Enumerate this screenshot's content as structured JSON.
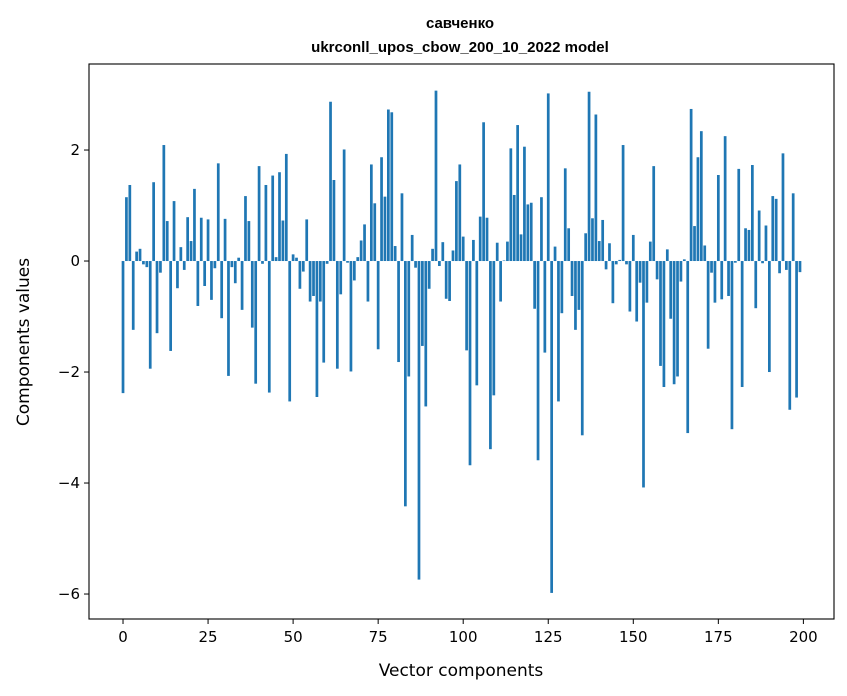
{
  "chart_data": {
    "type": "bar",
    "title": "савченко",
    "subtitle": "ukrconll_upos_cbow_200_10_2022 model",
    "xlabel": "Vector components",
    "ylabel": "Components values",
    "xlim": [
      -10,
      209
    ],
    "ylim": [
      -6.45,
      3.55
    ],
    "xticks": [
      0,
      25,
      50,
      75,
      100,
      125,
      150,
      175,
      200
    ],
    "yticks": [
      2,
      0,
      -2,
      -4,
      -6
    ],
    "ytick_labels": [
      "2",
      "0",
      "−2",
      "−4",
      "−6"
    ],
    "grid": false,
    "bar_color": "#1f77b4",
    "values": [
      -2.38,
      1.15,
      1.37,
      -1.24,
      0.17,
      0.22,
      -0.06,
      -0.11,
      -1.94,
      1.42,
      -1.3,
      -0.21,
      2.09,
      0.72,
      -1.62,
      1.08,
      -0.49,
      0.25,
      -0.16,
      0.79,
      0.36,
      1.3,
      -0.81,
      0.78,
      -0.45,
      0.75,
      -0.7,
      -0.13,
      1.76,
      -1.03,
      0.76,
      -2.07,
      -0.11,
      -0.4,
      0.06,
      -0.88,
      1.17,
      0.72,
      -1.2,
      -2.21,
      1.71,
      -0.05,
      1.37,
      -2.37,
      1.54,
      0.07,
      1.6,
      0.73,
      1.93,
      -2.53,
      0.12,
      0.06,
      -0.5,
      -0.19,
      0.75,
      -0.73,
      -0.63,
      -2.45,
      -0.73,
      -1.83,
      -0.05,
      2.87,
      1.46,
      -1.94,
      -0.6,
      2.01,
      -0.03,
      -1.99,
      -0.35,
      0.07,
      0.37,
      0.66,
      -0.73,
      1.74,
      1.04,
      -1.59,
      1.87,
      1.16,
      2.73,
      2.68,
      0.27,
      -1.82,
      1.22,
      -4.42,
      -2.08,
      0.47,
      -0.12,
      -5.74,
      -1.53,
      -2.62,
      -0.5,
      0.22,
      3.07,
      -0.09,
      0.34,
      -0.68,
      -0.72,
      0.19,
      1.44,
      1.74,
      0.44,
      -1.61,
      -3.68,
      0.38,
      -2.24,
      0.8,
      2.5,
      0.78,
      -3.39,
      -2.42,
      0.33,
      -0.73,
      0.01,
      0.35,
      2.03,
      1.19,
      2.45,
      0.48,
      2.06,
      1.02,
      1.05,
      -0.86,
      -3.59,
      1.15,
      -1.65,
      3.02,
      -5.98,
      0.26,
      -2.53,
      -0.94,
      1.67,
      0.59,
      -0.63,
      -1.24,
      -0.88,
      -3.14,
      0.5,
      3.05,
      0.77,
      2.64,
      0.36,
      0.74,
      -0.15,
      0.32,
      -0.76,
      -0.06,
      0.02,
      2.09,
      -0.06,
      -0.91,
      0.47,
      -1.09,
      -0.39,
      -4.08,
      -0.75,
      0.35,
      1.71,
      -0.33,
      -1.89,
      -2.27,
      0.21,
      -1.04,
      -2.22,
      -2.08,
      -0.37,
      0.03,
      -3.1,
      2.74,
      0.63,
      1.87,
      2.34,
      0.28,
      -1.58,
      -0.21,
      -0.75,
      1.55,
      -0.69,
      2.25,
      -0.63,
      -3.03,
      -0.03,
      1.66,
      -2.27,
      0.59,
      0.56,
      1.73,
      -0.85,
      0.91,
      -0.04,
      0.64,
      -2.0,
      1.17,
      1.12,
      -0.22,
      1.94,
      -0.16,
      -2.68,
      1.22,
      -2.46,
      -0.2
    ]
  }
}
